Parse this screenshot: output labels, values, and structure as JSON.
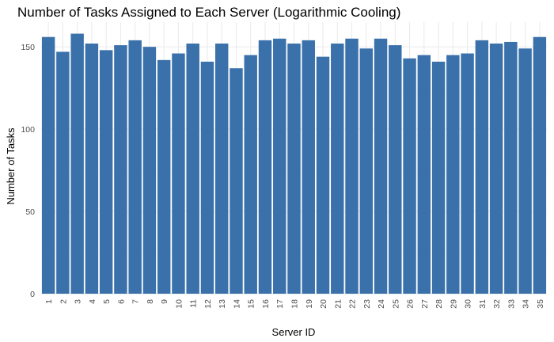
{
  "chart_data": {
    "type": "bar",
    "title": "Number of Tasks Assigned to Each Server (Logarithmic Cooling)",
    "xlabel": "Server ID",
    "ylabel": "Number of Tasks",
    "categories": [
      "1",
      "2",
      "3",
      "4",
      "5",
      "6",
      "7",
      "8",
      "9",
      "10",
      "11",
      "12",
      "13",
      "14",
      "15",
      "16",
      "17",
      "18",
      "19",
      "20",
      "21",
      "22",
      "23",
      "24",
      "25",
      "26",
      "27",
      "28",
      "29",
      "30",
      "31",
      "32",
      "33",
      "34",
      "35"
    ],
    "values": [
      156,
      147,
      158,
      152,
      148,
      151,
      154,
      150,
      142,
      146,
      152,
      141,
      152,
      137,
      145,
      154,
      155,
      152,
      154,
      144,
      152,
      155,
      149,
      155,
      151,
      143,
      145,
      141,
      145,
      146,
      154,
      152,
      153,
      149,
      156
    ],
    "yticks": [
      0,
      50,
      100,
      150
    ],
    "ylim": [
      0,
      165
    ],
    "bar_color": "#3a71aa",
    "grid": true
  }
}
